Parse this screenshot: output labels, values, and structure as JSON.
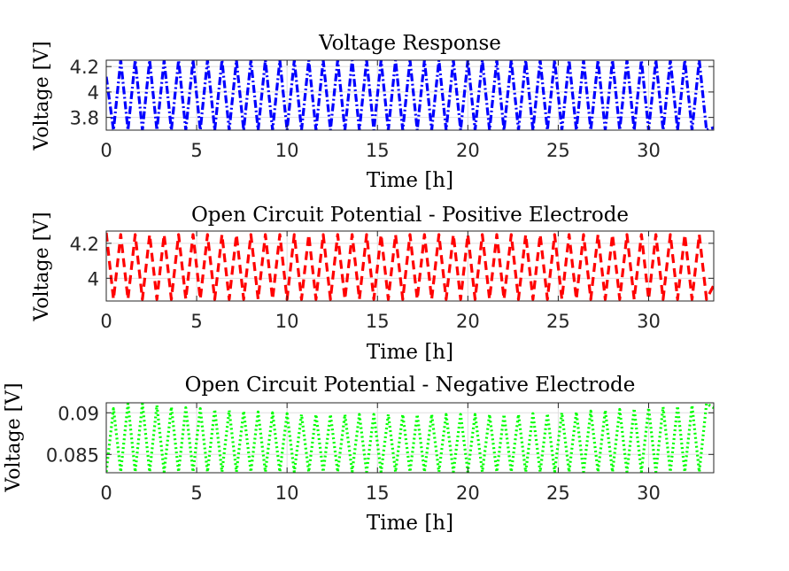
{
  "chart_data": [
    {
      "type": "line",
      "title": "Voltage Response",
      "xlabel": "Time [h]",
      "ylabel": "Voltage [V]",
      "xlim": [
        0,
        33.6
      ],
      "ylim": [
        3.7,
        4.25
      ],
      "xticks": [
        0,
        5,
        10,
        15,
        20,
        25,
        30
      ],
      "yticks": [
        3.8,
        4.0,
        4.2
      ],
      "ytick_labels": [
        "3.8",
        "4",
        "4.2"
      ],
      "grid": true,
      "series": [
        {
          "color": "#0000ff",
          "style": "dash-dot",
          "cycle_period_h": 0.8,
          "x": [
            0,
            0.4,
            0.8,
            1.2,
            1.6,
            2.0,
            2.4,
            2.8,
            3.2,
            3.6,
            4.0,
            4.4,
            4.8,
            5.2,
            5.6,
            6.0,
            6.4,
            6.8,
            7.2,
            7.6,
            8.0,
            8.4,
            8.8,
            9.2,
            9.6,
            10.0,
            10.4,
            10.8,
            11.2,
            11.6,
            12.0,
            12.4,
            12.8,
            13.2,
            13.6,
            14.0,
            14.4,
            14.8,
            15.2,
            15.6,
            16.0,
            16.4,
            16.8,
            17.2,
            17.6,
            18.0,
            18.4,
            18.8,
            19.2,
            19.6,
            20.0,
            20.4,
            20.8,
            21.2,
            21.6,
            22.0,
            22.4,
            22.8,
            23.2,
            23.6,
            24.0,
            24.4,
            24.8,
            25.2,
            25.6,
            26.0,
            26.4,
            26.8,
            27.2,
            27.6,
            28.0,
            28.4,
            28.8,
            29.2,
            29.6,
            30.0,
            30.4,
            30.8,
            31.2,
            31.6,
            32.0,
            32.4,
            32.8,
            33.2,
            33.6
          ],
          "y": [
            4.12,
            3.7,
            4.25,
            3.7,
            4.25,
            3.7,
            4.25,
            3.7,
            4.25,
            3.7,
            4.25,
            3.7,
            4.25,
            3.7,
            4.25,
            3.7,
            4.25,
            3.7,
            4.25,
            3.7,
            4.25,
            3.7,
            4.25,
            3.7,
            4.25,
            3.7,
            4.25,
            3.7,
            4.25,
            3.7,
            4.25,
            3.7,
            4.25,
            3.7,
            4.25,
            3.7,
            4.25,
            3.7,
            4.25,
            3.7,
            4.25,
            3.7,
            4.25,
            3.7,
            4.25,
            3.7,
            4.25,
            3.7,
            4.25,
            3.7,
            4.25,
            3.7,
            4.25,
            3.7,
            4.25,
            3.7,
            4.25,
            3.7,
            4.25,
            3.7,
            4.25,
            3.7,
            4.25,
            3.7,
            4.25,
            3.7,
            4.25,
            3.7,
            4.25,
            3.7,
            4.25,
            3.7,
            4.25,
            3.7,
            4.25,
            3.7,
            4.25,
            3.7,
            4.25,
            3.7,
            4.25,
            3.7,
            4.25,
            3.7,
            3.72
          ]
        }
      ]
    },
    {
      "type": "line",
      "title": "Open Circuit Potential - Positive Electrode",
      "xlabel": "Time [h]",
      "ylabel": "Voltage [V]",
      "xlim": [
        0,
        33.6
      ],
      "ylim": [
        3.87,
        4.27
      ],
      "xticks": [
        0,
        5,
        10,
        15,
        20,
        25,
        30
      ],
      "yticks": [
        4.0,
        4.2
      ],
      "ytick_labels": [
        "4",
        "4.2"
      ],
      "grid": true,
      "series": [
        {
          "color": "#ff0000",
          "style": "dashed",
          "cycle_period_h": 0.8,
          "x": [
            0,
            0.4,
            0.8,
            1.2,
            1.6,
            2.0,
            2.4,
            2.8,
            3.2,
            3.6,
            4.0,
            4.4,
            4.8,
            5.2,
            5.6,
            6.0,
            6.4,
            6.8,
            7.2,
            7.6,
            8.0,
            8.4,
            8.8,
            9.2,
            9.6,
            10.0,
            10.4,
            10.8,
            11.2,
            11.6,
            12.0,
            12.4,
            12.8,
            13.2,
            13.6,
            14.0,
            14.4,
            14.8,
            15.2,
            15.6,
            16.0,
            16.4,
            16.8,
            17.2,
            17.6,
            18.0,
            18.4,
            18.8,
            19.2,
            19.6,
            20.0,
            20.4,
            20.8,
            21.2,
            21.6,
            22.0,
            22.4,
            22.8,
            23.2,
            23.6,
            24.0,
            24.4,
            24.8,
            25.2,
            25.6,
            26.0,
            26.4,
            26.8,
            27.2,
            27.6,
            28.0,
            28.4,
            28.8,
            29.2,
            29.6,
            30.0,
            30.4,
            30.8,
            31.2,
            31.6,
            32.0,
            32.4,
            32.8,
            33.2,
            33.6
          ],
          "y": [
            4.26,
            3.88,
            4.25,
            3.88,
            4.25,
            3.88,
            4.25,
            3.88,
            4.25,
            3.88,
            4.25,
            3.88,
            4.25,
            3.88,
            4.25,
            3.88,
            4.25,
            3.88,
            4.25,
            3.88,
            4.25,
            3.88,
            4.25,
            3.88,
            4.25,
            3.88,
            4.25,
            3.88,
            4.25,
            3.88,
            4.25,
            3.88,
            4.25,
            3.88,
            4.25,
            3.88,
            4.25,
            3.88,
            4.25,
            3.88,
            4.25,
            3.88,
            4.25,
            3.88,
            4.25,
            3.88,
            4.25,
            3.88,
            4.25,
            3.88,
            4.25,
            3.88,
            4.25,
            3.88,
            4.25,
            3.88,
            4.25,
            3.88,
            4.25,
            3.88,
            4.25,
            3.88,
            4.25,
            3.88,
            4.25,
            3.88,
            4.25,
            3.88,
            4.25,
            3.88,
            4.25,
            3.88,
            4.25,
            3.88,
            4.25,
            3.88,
            4.25,
            3.88,
            4.25,
            3.88,
            4.25,
            3.88,
            4.25,
            3.88,
            3.96
          ]
        }
      ]
    },
    {
      "type": "line",
      "title": "Open Circuit Potential - Negative Electrode",
      "xlabel": "Time [h]",
      "ylabel": "Voltage [V]",
      "xlim": [
        0,
        33.6
      ],
      "ylim": [
        0.0828,
        0.0912
      ],
      "xticks": [
        0,
        5,
        10,
        15,
        20,
        25,
        30
      ],
      "yticks": [
        0.085,
        0.09
      ],
      "ytick_labels": [
        "0.085",
        "0.09"
      ],
      "grid": true,
      "series": [
        {
          "color": "#00ff00",
          "style": "dotted",
          "cycle_period_h": 0.8,
          "x": [
            0,
            0.4,
            0.8,
            1.2,
            1.6,
            2.0,
            2.4,
            2.8,
            3.2,
            3.6,
            4.0,
            4.4,
            4.8,
            5.2,
            5.6,
            6.0,
            6.4,
            6.8,
            7.2,
            7.6,
            8.0,
            8.4,
            8.8,
            9.2,
            9.6,
            10.0,
            10.4,
            10.8,
            11.2,
            11.6,
            12.0,
            12.4,
            12.8,
            13.2,
            13.6,
            14.0,
            14.4,
            14.8,
            15.2,
            15.6,
            16.0,
            16.4,
            16.8,
            17.2,
            17.6,
            18.0,
            18.4,
            18.8,
            19.2,
            19.6,
            20.0,
            20.4,
            20.8,
            21.2,
            21.6,
            22.0,
            22.4,
            22.8,
            23.2,
            23.6,
            24.0,
            24.4,
            24.8,
            25.2,
            25.6,
            26.0,
            26.4,
            26.8,
            27.2,
            27.6,
            28.0,
            28.4,
            28.8,
            29.2,
            29.6,
            30.0,
            30.4,
            30.8,
            31.2,
            31.6,
            32.0,
            32.4,
            32.8,
            33.2,
            33.6
          ],
          "y": [
            0.0829,
            0.0905,
            0.0829,
            0.0911,
            0.0829,
            0.0911,
            0.0829,
            0.0909,
            0.0829,
            0.0907,
            0.0829,
            0.0906,
            0.0829,
            0.0905,
            0.0829,
            0.0904,
            0.0829,
            0.0903,
            0.0829,
            0.0902,
            0.0829,
            0.0901,
            0.0829,
            0.09,
            0.0829,
            0.0899,
            0.0829,
            0.0898,
            0.0829,
            0.0898,
            0.0829,
            0.0898,
            0.0829,
            0.0898,
            0.0829,
            0.0898,
            0.0829,
            0.0898,
            0.0829,
            0.0898,
            0.0829,
            0.0898,
            0.0829,
            0.0898,
            0.0829,
            0.0898,
            0.0829,
            0.0898,
            0.0829,
            0.0898,
            0.0829,
            0.0898,
            0.0829,
            0.0898,
            0.0829,
            0.0898,
            0.0829,
            0.0898,
            0.0829,
            0.0899,
            0.0829,
            0.0899,
            0.0829,
            0.09,
            0.0829,
            0.0901,
            0.0829,
            0.0902,
            0.0829,
            0.0903,
            0.0829,
            0.0904,
            0.0829,
            0.0905,
            0.0829,
            0.0906,
            0.0829,
            0.0907,
            0.0829,
            0.0908,
            0.0829,
            0.0909,
            0.0829,
            0.0911,
            0.0906
          ]
        }
      ]
    }
  ]
}
